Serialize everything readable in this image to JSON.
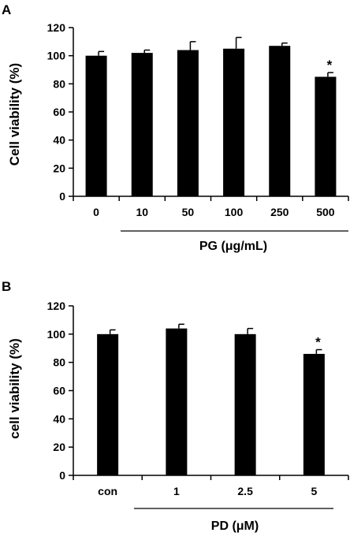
{
  "chart_data": [
    {
      "panel_label": "A",
      "type": "bar",
      "categories": [
        "0",
        "10",
        "50",
        "100",
        "250",
        "500"
      ],
      "values": [
        100,
        102,
        104,
        105,
        107,
        85
      ],
      "errors": [
        3,
        2,
        6,
        8,
        2,
        3
      ],
      "significance": [
        "",
        "",
        "",
        "",
        "",
        "*"
      ],
      "ylabel": "Cell viability (%)",
      "group_label": "PG (μg/mL)",
      "ylim": [
        0,
        120
      ],
      "yticks": [
        0,
        20,
        40,
        60,
        80,
        100,
        120
      ],
      "colors": {
        "bar": "#000000",
        "axis": "#000000"
      }
    },
    {
      "panel_label": "B",
      "type": "bar",
      "categories": [
        "con",
        "1",
        "2.5",
        "5"
      ],
      "values": [
        100,
        104,
        100,
        86
      ],
      "errors": [
        3,
        3,
        4,
        3
      ],
      "significance": [
        "",
        "",
        "",
        "*"
      ],
      "ylabel": "cell viability (%)",
      "group_label": "PD (μM)",
      "ylim": [
        0,
        120
      ],
      "yticks": [
        0,
        20,
        40,
        60,
        80,
        100,
        120
      ],
      "colors": {
        "bar": "#000000",
        "axis": "#000000"
      }
    }
  ]
}
